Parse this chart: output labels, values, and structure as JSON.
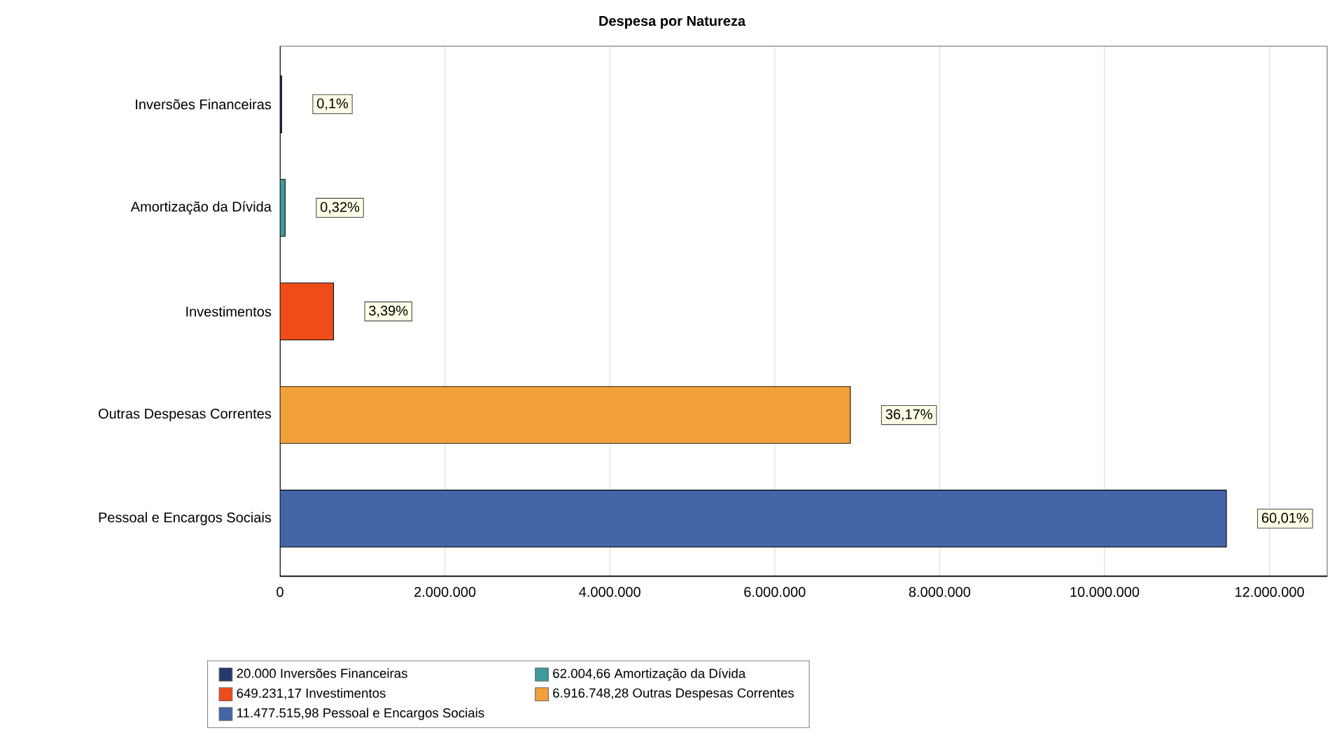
{
  "chart_data": {
    "type": "bar",
    "orientation": "horizontal",
    "title": "Despesa por Natureza",
    "categories": [
      "Inversões Financeiras",
      "Amortização da Dívida",
      "Investimentos",
      "Outras Despesas Correntes",
      "Pessoal e Encargos Sociais"
    ],
    "series": [
      {
        "name": "20.000 Inversões Financeiras",
        "color": "#243a6b",
        "values": [
          20000,
          null,
          null,
          null,
          null
        ]
      },
      {
        "name": "62.004,66 Amortização da Dívida",
        "color": "#3f9b9b",
        "values": [
          null,
          62004.66,
          null,
          null,
          null
        ]
      },
      {
        "name": "649.231,17 Investimentos",
        "color": "#f04c1a",
        "values": [
          null,
          null,
          649231.17,
          null,
          null
        ]
      },
      {
        "name": "6.916.748,28 Outras Despesas Correntes",
        "color": "#f2a03a",
        "values": [
          null,
          null,
          null,
          6916748.28,
          null
        ]
      },
      {
        "name": "11.477.515,98 Pessoal e Encargos Sociais",
        "color": "#4466a8",
        "values": [
          null,
          null,
          null,
          null,
          11477515.98
        ]
      }
    ],
    "annotations": [
      {
        "text": "0,1%",
        "x": 20000,
        "y": "Inversões Financeiras"
      },
      {
        "text": "0,32%",
        "x": 62004.66,
        "y": "Amortização da Dívida"
      },
      {
        "text": "3,39%",
        "x": 649231.17,
        "y": "Investimentos"
      },
      {
        "text": "36,17%",
        "x": 6916748.28,
        "y": "Outras Despesas Correntes"
      },
      {
        "text": "60,01%",
        "x": 11477515.98,
        "y": "Pessoal e Encargos Sociais"
      }
    ],
    "xlim": [
      0,
      12700000
    ],
    "xticks": [
      0,
      {
        "value": 2000000,
        "label": "2.000.000"
      },
      {
        "value": 4000000,
        "label": "4.000.000"
      },
      {
        "value": 6000000,
        "label": "6.000.000"
      },
      {
        "value": 8000000,
        "label": "8.000.000"
      },
      {
        "value": 10000000,
        "label": "10.000.000"
      },
      {
        "value": 12000000,
        "label": "12.000.000"
      }
    ],
    "grid": "x",
    "legend": "bottom"
  }
}
